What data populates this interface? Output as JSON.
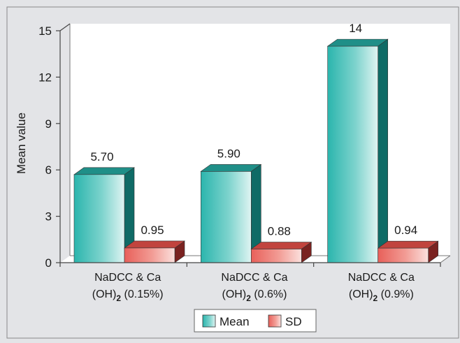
{
  "chart_data": {
    "type": "bar",
    "ylabel": "Mean value",
    "ylim": [
      0,
      15
    ],
    "yticks": [
      "0",
      "3",
      "6",
      "9",
      "12",
      "15"
    ],
    "categories": [
      [
        "NaDCC & Ca",
        "(OH)",
        "2",
        " (0.15%)"
      ],
      [
        "NaDCC & Ca",
        "(OH)",
        "2",
        " (0.6%)"
      ],
      [
        "NaDCC & Ca",
        "(OH)",
        "2",
        " (0.9%)"
      ]
    ],
    "series": [
      {
        "name": "Mean",
        "values": [
          5.7,
          5.9,
          14
        ],
        "labels": [
          "5.70",
          "5.90",
          "14"
        ],
        "color": "#2bb5ad"
      },
      {
        "name": "SD",
        "values": [
          0.95,
          0.88,
          0.94
        ],
        "labels": [
          "0.95",
          "0.88",
          "0.94"
        ],
        "color": "#e8605a"
      }
    ],
    "legend_position": "bottom-center",
    "grid": false,
    "style": "3d-bars"
  }
}
